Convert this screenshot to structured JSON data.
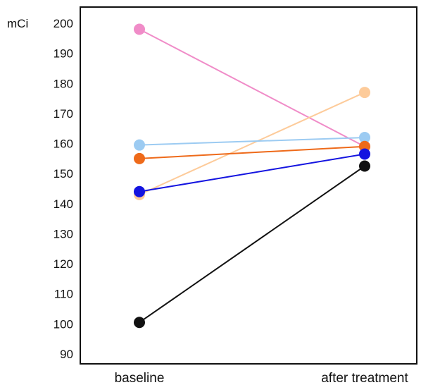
{
  "chart_data": {
    "type": "line",
    "title": "",
    "xlabel": "",
    "ylabel": "mCi",
    "categories": [
      "baseline",
      "after treatment"
    ],
    "ylim": [
      86,
      210
    ],
    "yticks": [
      90,
      100,
      110,
      120,
      130,
      140,
      150,
      160,
      170,
      180,
      190,
      200
    ],
    "grid": false,
    "legend": "none",
    "series": [
      {
        "color": "#f08cc8",
        "values": [
          198,
          159
        ]
      },
      {
        "color": "#fdcb9a",
        "values": [
          143,
          177
        ]
      },
      {
        "color": "#9ccbf2",
        "values": [
          159.5,
          162
        ]
      },
      {
        "color": "#ee6a1a",
        "values": [
          155,
          159
        ]
      },
      {
        "color": "#1414e0",
        "values": [
          144,
          156.5
        ]
      },
      {
        "color": "#111111",
        "values": [
          100.5,
          152.5
        ]
      }
    ]
  }
}
